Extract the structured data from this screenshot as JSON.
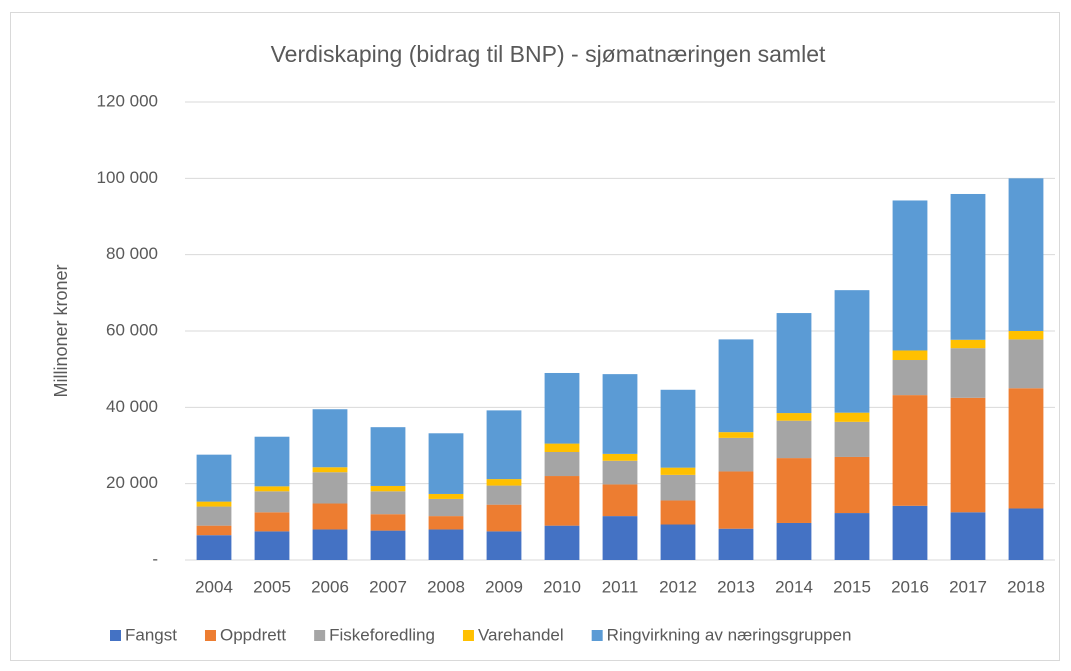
{
  "chart_data": {
    "type": "stacked_bar",
    "title": "Verdiskaping (bidrag til BNP) - sjømatnæringen samlet",
    "y_label": "Millinoner kroner",
    "categories": [
      "2004",
      "2005",
      "2006",
      "2007",
      "2008",
      "2009",
      "2010",
      "2011",
      "2012",
      "2013",
      "2014",
      "2015",
      "2016",
      "2017",
      "2018"
    ],
    "series": [
      {
        "name": "Fangst",
        "color": "#4472c4",
        "values": [
          6500,
          7500,
          8000,
          7700,
          8000,
          7500,
          9000,
          11500,
          9300,
          8200,
          9700,
          12300,
          14200,
          12500,
          13500
        ]
      },
      {
        "name": "Oppdrett",
        "color": "#ed7d31",
        "values": [
          2500,
          5000,
          6800,
          4300,
          3500,
          7000,
          13000,
          8300,
          6300,
          15000,
          17000,
          14700,
          29000,
          30000,
          31500
        ]
      },
      {
        "name": "Fiskeforedling",
        "color": "#a5a5a5",
        "values": [
          5000,
          5500,
          8200,
          6000,
          4500,
          5000,
          6300,
          6200,
          6700,
          8800,
          9800,
          9200,
          9200,
          13000,
          12800
        ]
      },
      {
        "name": "Varehandel",
        "color": "#ffc000",
        "values": [
          1300,
          1300,
          1300,
          1400,
          1300,
          1700,
          2200,
          1800,
          1900,
          1500,
          2000,
          2400,
          2500,
          2200,
          2200
        ]
      },
      {
        "name": "Ringvirkning av næringsgruppen",
        "color": "#5b9bd5",
        "values": [
          12300,
          13000,
          15200,
          15400,
          15900,
          18000,
          18500,
          20900,
          20400,
          24300,
          26200,
          32100,
          39300,
          38200,
          40000
        ]
      }
    ],
    "ylim": [
      0,
      120000
    ],
    "yticks": [
      {
        "value": 0,
        "label": "-"
      },
      {
        "value": 20000,
        "label": "20 000"
      },
      {
        "value": 40000,
        "label": "40 000"
      },
      {
        "value": 60000,
        "label": "60 000"
      },
      {
        "value": 80000,
        "label": "80 000"
      },
      {
        "value": 100000,
        "label": "100 000"
      },
      {
        "value": 120000,
        "label": "120 000"
      }
    ],
    "grid": true,
    "legend": "bottom"
  }
}
